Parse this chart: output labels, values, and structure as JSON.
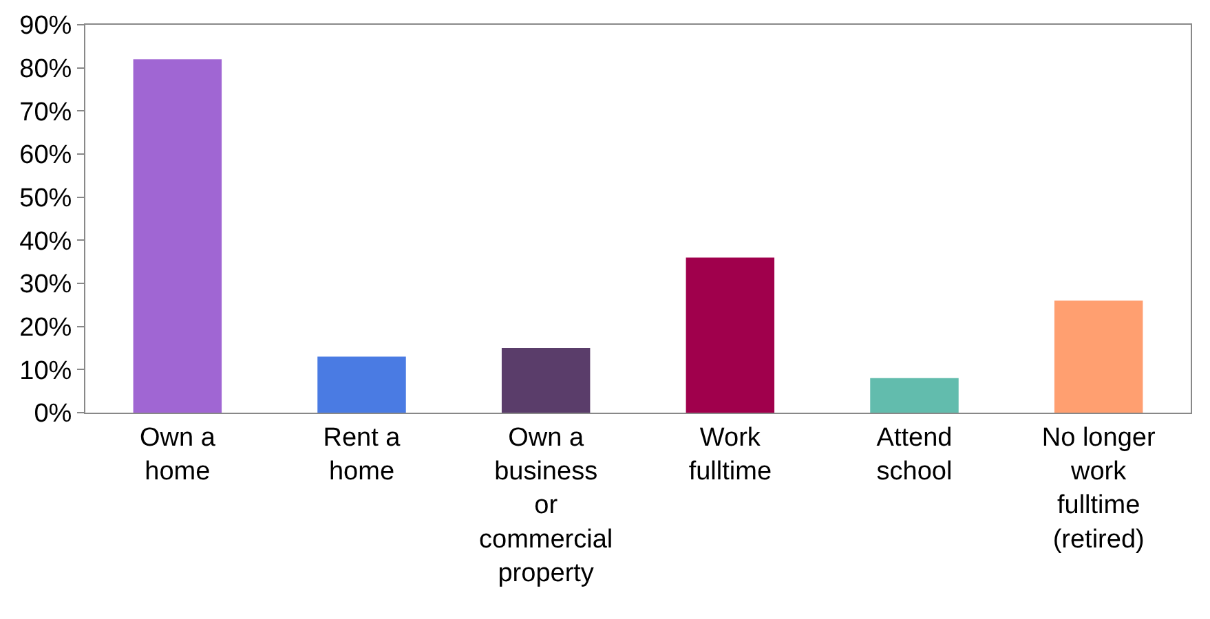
{
  "chart_data": {
    "type": "bar",
    "categories": [
      "Own a home",
      "Rent a home",
      "Own a business or commercial property",
      "Work fulltime",
      "Attend school",
      "No longer work fulltime (retired)"
    ],
    "values": [
      82,
      13,
      15,
      36,
      8,
      26
    ],
    "colors": [
      "#a066d3",
      "#4a7be3",
      "#5a3d6a",
      "#a0004c",
      "#62bcad",
      "#ff9f70"
    ],
    "ylim": [
      0,
      90
    ],
    "yticks": [
      {
        "value": 0,
        "label": "0%"
      },
      {
        "value": 10,
        "label": "10%"
      },
      {
        "value": 20,
        "label": "20%"
      },
      {
        "value": 30,
        "label": "30%"
      },
      {
        "value": 40,
        "label": "40%"
      },
      {
        "value": 50,
        "label": "50%"
      },
      {
        "value": 60,
        "label": "60%"
      },
      {
        "value": 70,
        "label": "70%"
      },
      {
        "value": 80,
        "label": "80%"
      },
      {
        "value": 90,
        "label": "90%"
      }
    ],
    "grid": false
  }
}
